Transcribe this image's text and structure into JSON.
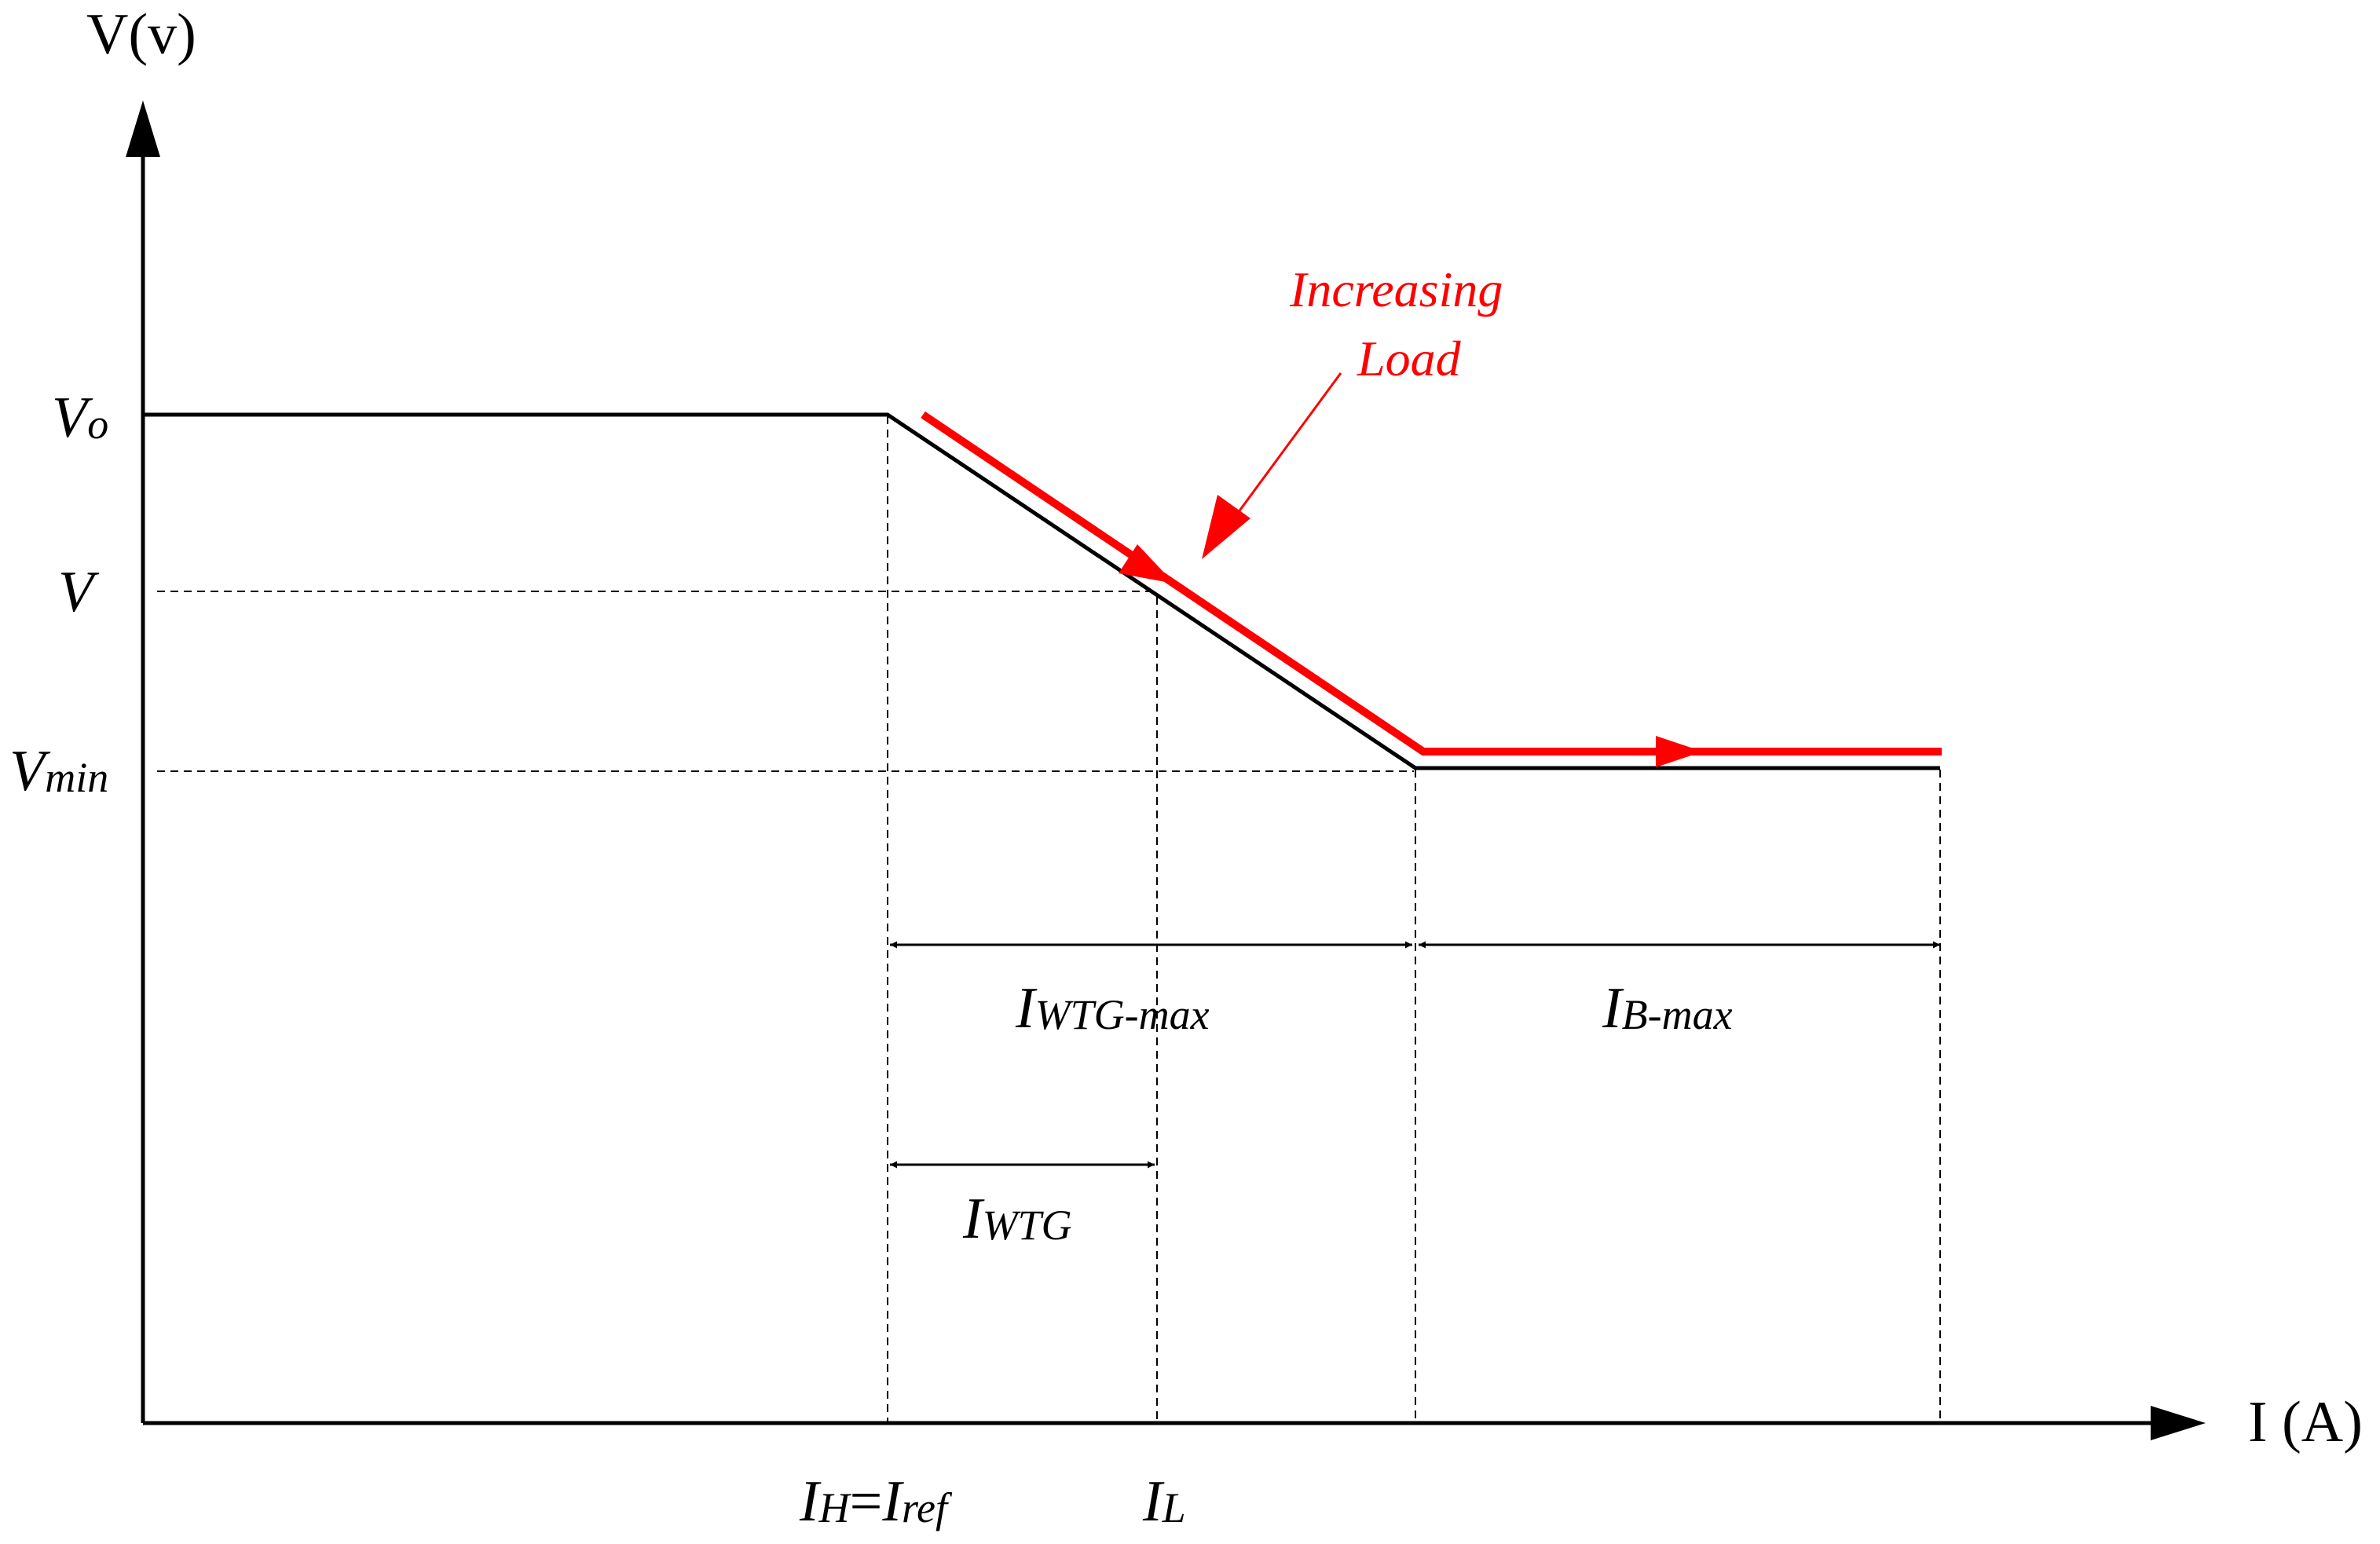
{
  "axes": {
    "y_label": "V(v)",
    "x_label": "I (A)"
  },
  "y_ticks": {
    "vo": {
      "main": "V",
      "sub": "o"
    },
    "v": {
      "main": "V"
    },
    "vmin": {
      "main": "V",
      "sub": "min"
    }
  },
  "x_ticks": {
    "ih": {
      "main1": "I",
      "sub1": "H",
      "eq": "=",
      "main2": "I",
      "sub2": "ref"
    },
    "il": {
      "main": "I",
      "sub": "L"
    }
  },
  "dimensions": {
    "iwtg_max": {
      "main": "I",
      "sub": "WTG-max"
    },
    "ib_max": {
      "main": "I",
      "sub": "B-max"
    },
    "iwtg": {
      "main": "I",
      "sub": "WTG"
    }
  },
  "annotation": {
    "line1": "Increasing",
    "line2": "Load"
  },
  "colors": {
    "curve": "#000000",
    "load_path": "#ff0000",
    "guides": "#000000"
  }
}
